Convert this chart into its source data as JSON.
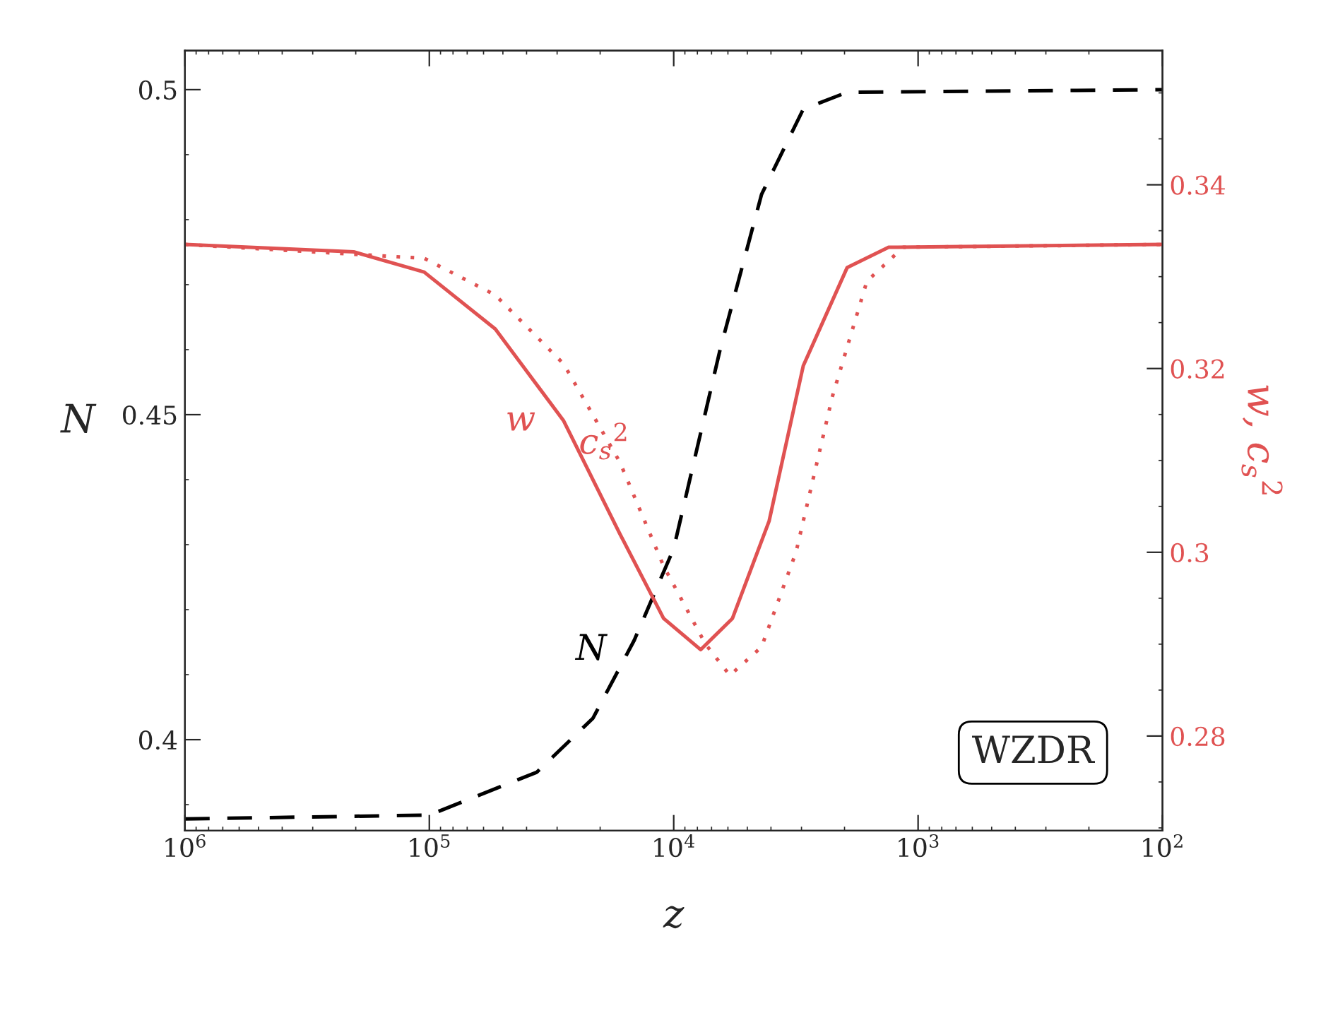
{
  "chart_data": {
    "type": "line",
    "xlabel": "z",
    "ylabel": "N",
    "y2label": "w, c$_{s}$$^{2}$",
    "log": "x",
    "grid": false,
    "legend": false,
    "marker": "none",
    "xlim": [
      1000000,
      100
    ],
    "ylim": [
      0.386,
      0.506
    ],
    "y2lim": [
      0.2697,
      0.3546
    ],
    "xticks": [
      {
        "value": 1000000,
        "label": "10$^{6}$"
      },
      {
        "value": 100000,
        "label": "10$^{5}$"
      },
      {
        "value": 10000,
        "label": "10$^{4}$"
      },
      {
        "value": 1000,
        "label": "10$^{3}$"
      },
      {
        "value": 100,
        "label": "10$^{2}$"
      }
    ],
    "yticks": [
      0.4,
      0.45,
      0.5
    ],
    "y2ticks": [
      0.28,
      0.3,
      0.32,
      0.34
    ],
    "annotations": [
      "WZDR"
    ],
    "series": [
      {
        "name": "N",
        "color": "#000000",
        "line_style": "dashed",
        "x": [
          1000000,
          100000,
          36300,
          21400,
          14500,
          10000,
          6460,
          4370,
          2950,
          1950,
          100
        ],
        "values": [
          0.3878,
          0.3884,
          0.395,
          0.4033,
          0.4153,
          0.4294,
          0.46,
          0.4839,
          0.497,
          0.4996,
          0.5
        ]
      },
      {
        "name": "w",
        "color": "#e05252",
        "line_style": "solid",
        "axis": "y2",
        "x": [
          1000000,
          204000,
          105000,
          53700,
          28200,
          16600,
          11000,
          7760,
          5750,
          4070,
          2950,
          1950,
          1320,
          100
        ],
        "values": [
          0.3335,
          0.3327,
          0.3305,
          0.3243,
          0.3143,
          0.302,
          0.2928,
          0.2894,
          0.2928,
          0.3034,
          0.3203,
          0.331,
          0.3332,
          0.3335
        ]
      },
      {
        "name": "c$_{s}$$^{2}$",
        "color": "#e05252",
        "line_style": "dotted",
        "axis": "y2",
        "x": [
          1000000,
          105000,
          53700,
          28200,
          16600,
          11000,
          7410,
          5890,
          4370,
          3160,
          2240,
          1620,
          1150,
          100
        ],
        "values": [
          0.3335,
          0.332,
          0.328,
          0.3205,
          0.3098,
          0.2985,
          0.29,
          0.2866,
          0.2897,
          0.3,
          0.317,
          0.3295,
          0.3332,
          0.3335
        ]
      }
    ]
  }
}
